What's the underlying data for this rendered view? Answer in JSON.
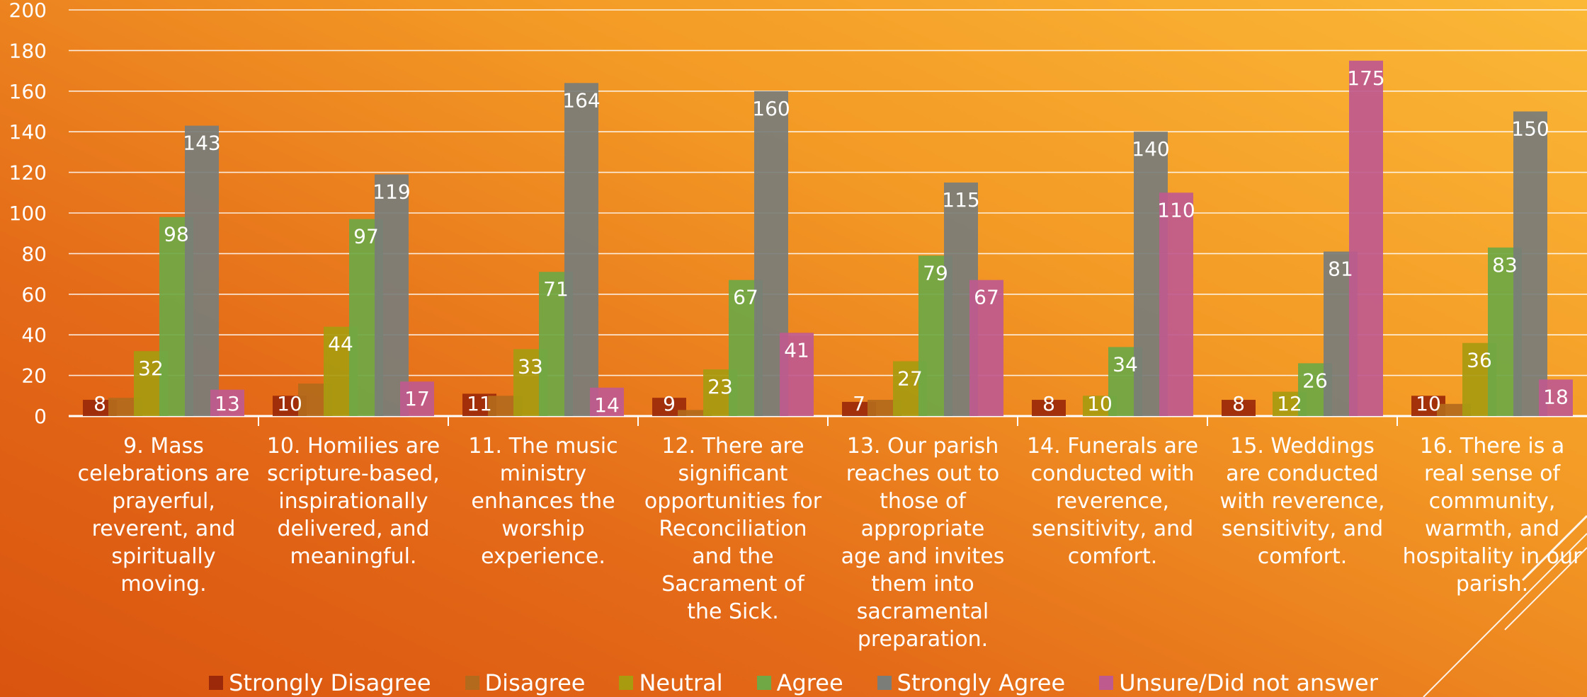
{
  "chart_data": {
    "type": "bar",
    "title": "",
    "xlabel": "",
    "ylabel": "",
    "ylim": [
      0,
      200
    ],
    "yticks": [
      0,
      20,
      40,
      60,
      80,
      100,
      120,
      140,
      160,
      180,
      200
    ],
    "grid": true,
    "legend_position": "bottom",
    "categories": [
      "9. Mass celebrations are prayerful, reverent, and spiritually moving.",
      "10. Homilies are scripture-based, inspirationally delivered, and meaningful.",
      "11. The music ministry enhances the worship experience.",
      "12. There are significant opportunities for Reconciliation and the Sacrament of the Sick.",
      "13. Our parish reaches out to those of appropriate age and invites them into sacramental preparation.",
      "14. Funerals are conducted with reverence, sensitivity, and comfort.",
      "15. Weddings are conducted with reverence, sensitivity, and comfort.",
      "16. There is a real sense of community, warmth, and hospitality in our parish."
    ],
    "category_lines": [
      [
        "9. Mass",
        "celebrations are",
        "prayerful,",
        "reverent, and",
        "spiritually",
        "moving."
      ],
      [
        "10. Homilies are",
        "scripture-based,",
        "inspirationally",
        "delivered, and",
        "meaningful."
      ],
      [
        "11. The music",
        "ministry",
        "enhances the",
        "worship",
        "experience."
      ],
      [
        "12. There are",
        "significant",
        "opportunities for",
        "Reconciliation",
        "and the",
        "Sacrament of",
        "the Sick."
      ],
      [
        "13. Our parish",
        "reaches out to",
        "those of",
        "appropriate",
        "age and invites",
        "them into",
        "sacramental",
        "preparation."
      ],
      [
        "14. Funerals are",
        "conducted with",
        "reverence,",
        "sensitivity, and",
        "comfort."
      ],
      [
        "15. Weddings",
        "are conducted",
        "with reverence,",
        "sensitivity, and",
        "comfort."
      ],
      [
        "16. There is a",
        "real sense of",
        "community,",
        "warmth, and",
        "hospitality in our",
        "parish."
      ]
    ],
    "series": [
      {
        "name": "Strongly Disagree",
        "color": "#9c2a0a",
        "values": [
          8,
          10,
          11,
          9,
          7,
          8,
          8,
          10
        ],
        "labels": [
          "8",
          "10",
          "11",
          "9",
          "7",
          "8",
          "8",
          "10"
        ]
      },
      {
        "name": "Disagree",
        "color": "#b36a1c",
        "values": [
          9,
          16,
          10,
          3,
          8,
          0,
          0,
          6
        ],
        "labels": [
          "",
          "",
          "",
          "",
          "",
          "",
          "",
          ""
        ]
      },
      {
        "name": "Neutral",
        "color": "#a89b10",
        "values": [
          32,
          44,
          33,
          23,
          27,
          10,
          12,
          36
        ],
        "labels": [
          "32",
          "44",
          "33",
          "23",
          "27",
          "10",
          "12",
          "36"
        ]
      },
      {
        "name": "Agree",
        "color": "#6fa845",
        "values": [
          98,
          97,
          71,
          67,
          79,
          34,
          26,
          83
        ],
        "labels": [
          "98",
          "97",
          "71",
          "67",
          "79",
          "34",
          "26",
          "83"
        ]
      },
      {
        "name": "Strongly Agree",
        "color": "#7a7d78",
        "values": [
          143,
          119,
          164,
          160,
          115,
          140,
          81,
          150
        ],
        "labels": [
          "143",
          "119",
          "164",
          "160",
          "115",
          "140",
          "81",
          "150"
        ]
      },
      {
        "name": "Unsure/Did not answer",
        "color": "#bf5a8e",
        "values": [
          13,
          17,
          14,
          41,
          67,
          110,
          175,
          18
        ],
        "labels": [
          "13",
          "17",
          "14",
          "41",
          "67",
          "110",
          "175",
          "18"
        ]
      }
    ]
  }
}
